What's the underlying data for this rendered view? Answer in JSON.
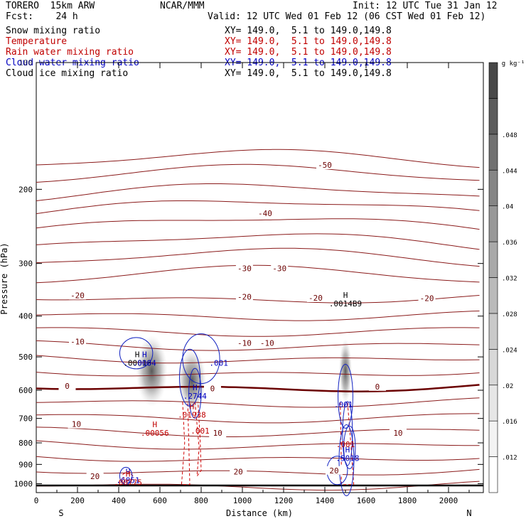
{
  "header": {
    "model": "TORERO  15km ARW",
    "org": "NCAR/MMM",
    "init": "Init: 12 UTC Tue 31 Jan 12",
    "fcst": "Fcst:    24 h",
    "valid": "Valid: 12 UTC Wed 01 Feb 12 (06 CST Wed 01 Feb 12)"
  },
  "fields": [
    {
      "name": "Snow mixing ratio",
      "xy": "XY= 149.0,  5.1 to 149.0,149.8",
      "color": "#000000"
    },
    {
      "name": "Temperature",
      "xy": "XY= 149.0,  5.1 to 149.0,149.8",
      "color": "#c00000"
    },
    {
      "name": "Rain water mixing ratio",
      "xy": "XY= 149.0,  5.1 to 149.0,149.8",
      "color": "#c00000"
    },
    {
      "name": "Cloud water mixing ratio",
      "xy": "XY= 149.0,  5.1 to 149.0,149.8",
      "color": "#0000c0"
    },
    {
      "name": "Cloud ice mixing ratio",
      "xy": "XY= 149.0,  5.1 to 149.0,149.8",
      "color": "#000000"
    }
  ],
  "chart_data": {
    "type": "contour",
    "xlabel": "Distance (km)",
    "ylabel": "Pressure (hPa)",
    "x_ticks": [
      0,
      200,
      400,
      600,
      800,
      1000,
      1200,
      1400,
      1600,
      1800,
      2000
    ],
    "y_ticks": [
      200,
      300,
      400,
      500,
      600,
      700,
      800,
      900,
      1000
    ],
    "xlim": [
      0,
      2150
    ],
    "ylim": [
      1050,
      100
    ],
    "y_scale": "log",
    "left_end_label": "S",
    "right_end_label": "N",
    "colorbar": {
      "unit": "g kg⁻¹",
      "labels": [
        ".012",
        ".016",
        ".02",
        ".024",
        ".028",
        ".032",
        ".036",
        ".04",
        ".044",
        ".048"
      ],
      "colors": [
        "#ffffff",
        "#f3f3f3",
        "#e6e6e6",
        "#d8d8d8",
        "#c9c9c9",
        "#bababa",
        "#a9a9a9",
        "#989898",
        "#858585",
        "#717171",
        "#5c5c5c",
        "#484848"
      ]
    },
    "temperature_labels": [
      {
        "x": 1400,
        "p": 175,
        "text": "-50"
      },
      {
        "x": 1110,
        "p": 228,
        "text": "-40"
      },
      {
        "x": 1010,
        "p": 308,
        "text": "-30"
      },
      {
        "x": 1180,
        "p": 308,
        "text": "-30"
      },
      {
        "x": 200,
        "p": 357,
        "text": "-20"
      },
      {
        "x": 1010,
        "p": 360,
        "text": "-20"
      },
      {
        "x": 1355,
        "p": 362,
        "text": "-20"
      },
      {
        "x": 1895,
        "p": 363,
        "text": "-20"
      },
      {
        "x": 200,
        "p": 460,
        "text": "-10"
      },
      {
        "x": 1010,
        "p": 463,
        "text": "-10"
      },
      {
        "x": 1120,
        "p": 463,
        "text": "-10"
      },
      {
        "x": 150,
        "p": 586,
        "text": "0"
      },
      {
        "x": 855,
        "p": 594,
        "text": "0"
      },
      {
        "x": 1655,
        "p": 588,
        "text": "0"
      },
      {
        "x": 195,
        "p": 722,
        "text": "10"
      },
      {
        "x": 880,
        "p": 758,
        "text": "10"
      },
      {
        "x": 1755,
        "p": 758,
        "text": "10"
      },
      {
        "x": 285,
        "p": 961,
        "text": "20"
      },
      {
        "x": 980,
        "p": 937,
        "text": "20"
      },
      {
        "x": 1445,
        "p": 930,
        "text": "20"
      }
    ],
    "maxima": [
      {
        "x": 1500,
        "p": 365,
        "text": ".0014B9",
        "color": "#000000"
      },
      {
        "x": 490,
        "p": 505,
        "text": ".00016",
        "color": "#000000"
      },
      {
        "x": 525,
        "p": 505,
        "text": ".0004",
        "color": "#0000c0"
      },
      {
        "x": 770,
        "p": 605,
        "text": ".2744",
        "color": "#0000c0"
      },
      {
        "x": 755,
        "p": 670,
        "text": ".01938",
        "color": "#c00000"
      },
      {
        "x": 575,
        "p": 740,
        "text": ".00056",
        "color": "#c00000"
      },
      {
        "x": 1510,
        "p": 850,
        "text": ".5018",
        "color": "#0000c0"
      },
      {
        "x": 445,
        "p": 958,
        "text": ".6851",
        "color": "#0000c0"
      },
      {
        "x": 445,
        "p": 970,
        "text": ".00775",
        "color": "#c00000"
      }
    ],
    "contour_labels": [
      {
        "x": 885,
        "p": 525,
        "text": ".001",
        "color": "#0000c0"
      },
      {
        "x": 1490,
        "p": 658,
        "text": ".001",
        "color": "#0000c0"
      },
      {
        "x": 795,
        "p": 760,
        "text": ".001",
        "color": "#c00000"
      },
      {
        "x": 1500,
        "p": 818,
        "text": ".001",
        "color": "#c00000"
      }
    ]
  }
}
